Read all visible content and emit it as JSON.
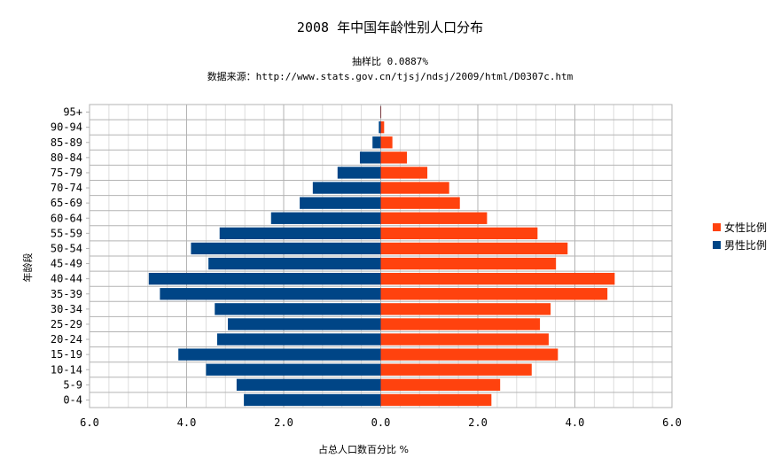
{
  "chart_data": {
    "type": "bar",
    "orientation": "horizontal",
    "layout": "population-pyramid",
    "title": "2008 年中国年龄性别人口分布",
    "subtitle_line1": "抽样比 0.0887%",
    "subtitle_line2": "数据来源：http://www.stats.gov.cn/tjsj/ndsj/2009/html/D0307c.htm",
    "xlabel": "占总人口数百分比 %",
    "ylabel": "年龄段",
    "xlim": [
      -6,
      6
    ],
    "x_ticks": [
      -6,
      -4,
      -2,
      0,
      2,
      4,
      6
    ],
    "x_tick_labels": [
      "6.0",
      "4.0",
      "2.0",
      "0.0",
      "2.0",
      "4.0",
      "6.0"
    ],
    "grid": true,
    "legend_position": "right",
    "categories": [
      "0-4",
      "5-9",
      "10-14",
      "15-19",
      "20-24",
      "25-29",
      "30-34",
      "35-39",
      "40-44",
      "45-49",
      "50-54",
      "55-59",
      "60-64",
      "65-69",
      "70-74",
      "75-79",
      "80-84",
      "85-89",
      "90-94",
      "95+"
    ],
    "series": [
      {
        "name": "女性比例",
        "color": "#ff420e",
        "side": "right",
        "values": [
          2.28,
          2.46,
          3.11,
          3.65,
          3.46,
          3.28,
          3.5,
          4.67,
          4.82,
          3.61,
          3.85,
          3.23,
          2.19,
          1.63,
          1.41,
          0.96,
          0.54,
          0.24,
          0.07,
          0.01
        ]
      },
      {
        "name": "男性比例",
        "color": "#004586",
        "side": "left",
        "values": [
          2.82,
          2.97,
          3.6,
          4.17,
          3.37,
          3.15,
          3.42,
          4.55,
          4.78,
          3.55,
          3.91,
          3.32,
          2.26,
          1.67,
          1.4,
          0.89,
          0.43,
          0.17,
          0.04,
          0.01
        ]
      }
    ]
  }
}
